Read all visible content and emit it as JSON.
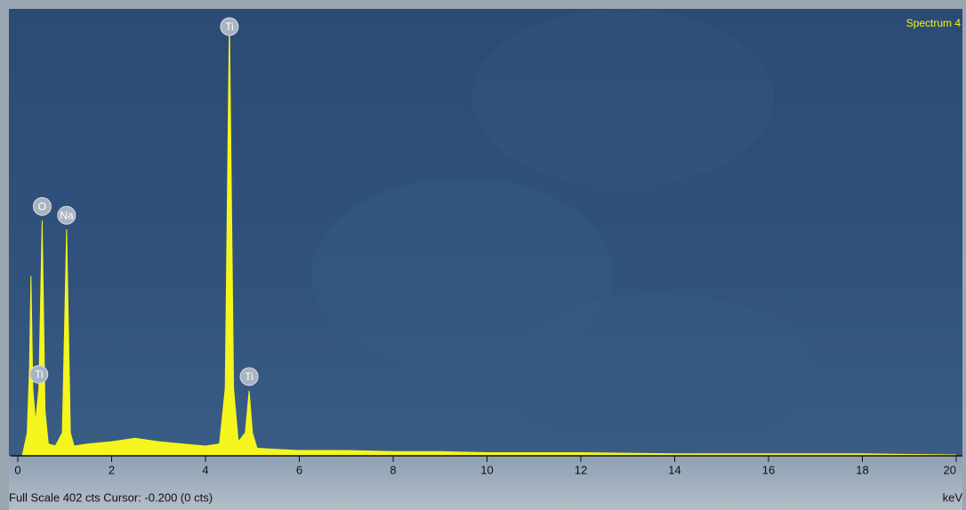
{
  "chart_data": {
    "type": "spectrum",
    "title": "Spectrum 4",
    "footer": "Full Scale 402 cts Cursor: -0.200  (0 cts)",
    "x_unit": "keV",
    "color": "#f5f51e",
    "xlim": [
      0,
      20
    ],
    "xticks": [
      0,
      2,
      4,
      6,
      8,
      10,
      12,
      14,
      16,
      18,
      20
    ],
    "ylim": [
      0,
      402
    ],
    "x": [
      0.1,
      0.2,
      0.25,
      0.28,
      0.32,
      0.38,
      0.45,
      0.52,
      0.58,
      0.65,
      0.8,
      0.95,
      1.04,
      1.12,
      1.2,
      1.5,
      2.0,
      2.5,
      3.0,
      3.5,
      4.0,
      4.3,
      4.42,
      4.51,
      4.6,
      4.7,
      4.85,
      4.93,
      5.0,
      5.1,
      5.5,
      6,
      7,
      8,
      9,
      10,
      12,
      14,
      16,
      18,
      20
    ],
    "values": [
      0,
      20,
      80,
      162,
      60,
      30,
      60,
      212,
      40,
      10,
      8,
      20,
      204,
      20,
      8,
      10,
      12,
      15,
      12,
      10,
      8,
      10,
      60,
      395,
      60,
      12,
      20,
      58,
      20,
      6,
      5,
      4,
      4,
      3,
      3,
      2,
      2,
      1,
      1,
      1,
      0
    ],
    "annotations": [
      {
        "text": "Ti",
        "x": 0.45
      },
      {
        "text": "O",
        "x": 0.52
      },
      {
        "text": "Na",
        "x": 1.04
      },
      {
        "text": "Ti",
        "x": 4.51
      },
      {
        "text": "Ti",
        "x": 4.93
      }
    ]
  }
}
